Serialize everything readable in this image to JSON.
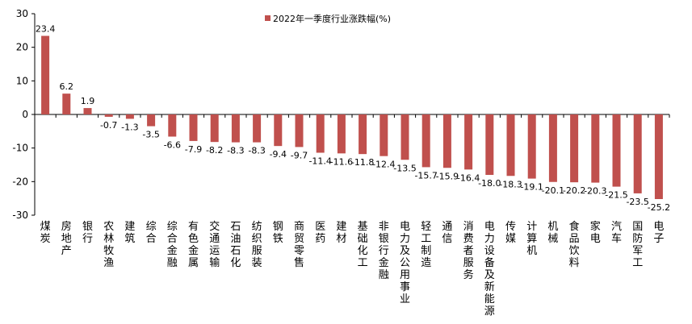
{
  "chart_data": {
    "type": "bar",
    "title": "",
    "xlabel": "",
    "ylabel": "",
    "ylim": [
      -30,
      30
    ],
    "yticks": [
      -30,
      -20,
      -10,
      0,
      10,
      20,
      30
    ],
    "grid": false,
    "legend": {
      "placement": "top-center",
      "entries": [
        "2022年一季度行业涨跌幅(%)"
      ]
    },
    "categories": [
      "煤炭",
      "房地产",
      "银行",
      "农林牧渔",
      "建筑",
      "综合",
      "综合金融",
      "有色金属",
      "交通运输",
      "石油石化",
      "纺织服装",
      "钢铁",
      "商贸零售",
      "医药",
      "建材",
      "基础化工",
      "非银行金融",
      "电力及公用事业",
      "轻工制造",
      "通信",
      "消费者服务",
      "电力设备及新能源",
      "传媒",
      "计算机",
      "机械",
      "食品饮料",
      "家电",
      "汽车",
      "国防军工",
      "电子"
    ],
    "series": [
      {
        "name": "2022年一季度行业涨跌幅(%)",
        "color": "#c0504d",
        "values": [
          23.4,
          6.2,
          1.9,
          -0.7,
          -1.3,
          -3.5,
          -6.6,
          -7.9,
          -8.2,
          -8.3,
          -8.3,
          -9.4,
          -9.7,
          -11.4,
          -11.6,
          -11.8,
          -12.4,
          -13.5,
          -15.7,
          -15.9,
          -16.4,
          -18.0,
          -18.3,
          -19.1,
          -20.1,
          -20.2,
          -20.3,
          -21.5,
          -23.5,
          -25.2
        ],
        "labels": [
          "23.4",
          "6.2",
          "1.9",
          "-0.7",
          "-1.3",
          "-3.5",
          "-6.6",
          "-7.9",
          "-8.2",
          "-8.3",
          "-8.3",
          "-9.4",
          "-9.7",
          "-11.4",
          "-11.6",
          "-11.8",
          "-12.4",
          "-13.5",
          "-15.7",
          "-15.9",
          "-16.4",
          "-18.0",
          "-18.3",
          "-19.1",
          "-20.1",
          "-20.2",
          "-20.3",
          "-21.5",
          "-23.5",
          "-25.2"
        ]
      }
    ]
  }
}
